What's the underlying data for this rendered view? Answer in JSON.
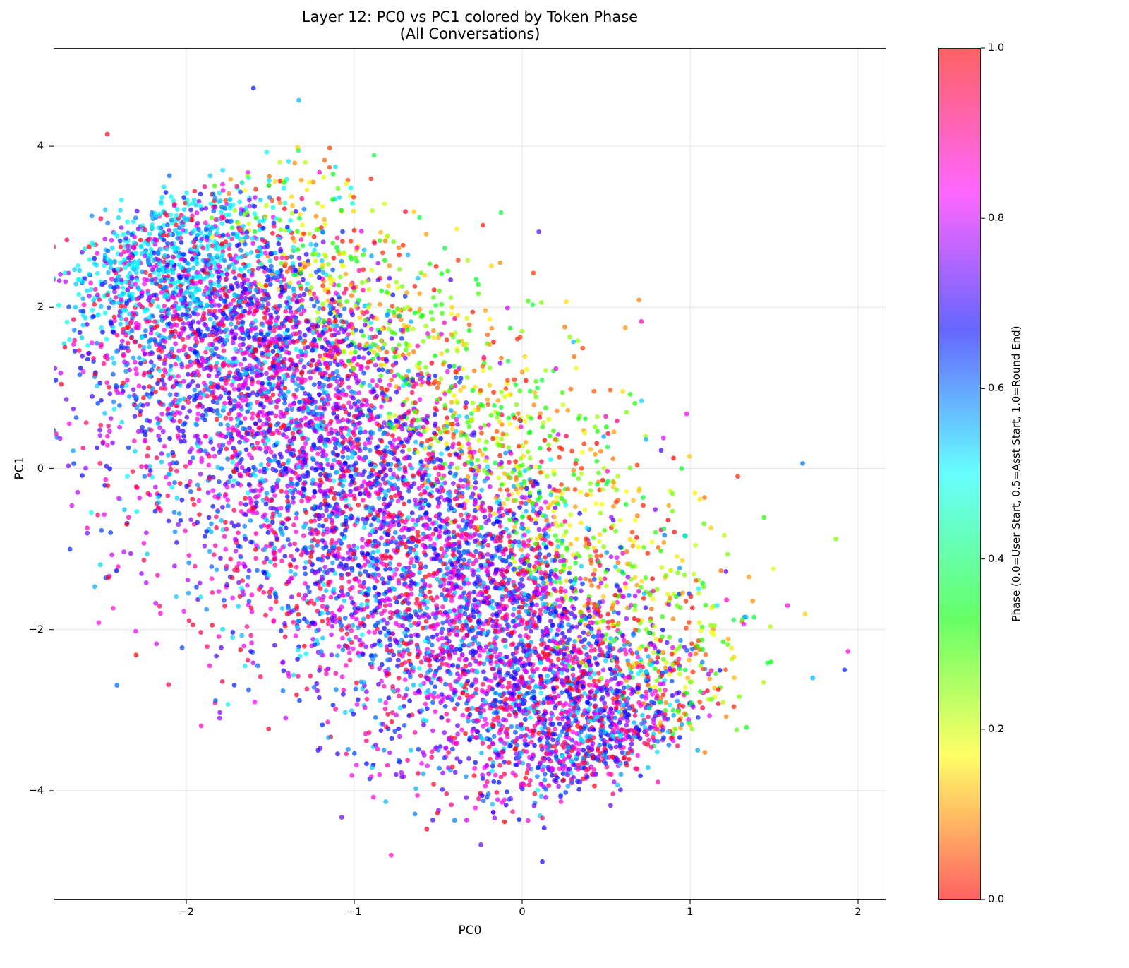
{
  "chart_data": {
    "type": "scatter",
    "title": "Layer 12: PC0 vs PC1 colored by Token Phase",
    "subtitle": "(All Conversations)",
    "xlabel": "PC0",
    "ylabel": "PC1",
    "xlim": [
      -2.1,
      2.15
    ],
    "ylim": [
      -5.3,
      5.25
    ],
    "xticks": [
      "−2",
      "−1",
      "0",
      "1",
      "2"
    ],
    "xtick_values": [
      -2,
      -1,
      0,
      1,
      2
    ],
    "yticks": [
      "4",
      "2",
      "0",
      "−2",
      "−4"
    ],
    "ytick_values": [
      4,
      2,
      0,
      -2,
      -4
    ],
    "grid": true,
    "point_count_estimate": 60000,
    "cloud_description": "Dense elongated point cloud running from upper-left (PC0≈-2.3, PC1≈3) to lower-right (PC0≈0.6, PC1≈-3.5); low-phase points (yellow/orange/green, phase 0.0–0.35) concentrated along the right/lower-right edge (PC0 0.3–1.4); cyan cluster (phase≈0.5) near PC0≈-2.1, PC1≈2.8; bulk of cloud is blue/purple/magenta/red (phase 0.6–1.0).",
    "cloud_extent": {
      "pc0_range": [
        -2.55,
        1.95
      ],
      "pc1_range": [
        -4.9,
        4.75
      ]
    },
    "notable_outliers": [
      {
        "pc0": -1.6,
        "pc1": 4.72,
        "phase": 0.65
      },
      {
        "pc0": -1.33,
        "pc1": 4.57,
        "phase": 0.55
      },
      {
        "pc0": 1.94,
        "pc1": -2.27,
        "phase": 0.85
      },
      {
        "pc0": 1.92,
        "pc1": -2.5,
        "phase": 0.65
      },
      {
        "pc0": 1.73,
        "pc1": -2.6,
        "phase": 0.55
      },
      {
        "pc0": 1.58,
        "pc1": -1.7,
        "phase": 0.85
      },
      {
        "pc0": -2.47,
        "pc1": 4.15,
        "phase": 0.98
      },
      {
        "pc0": -0.78,
        "pc1": -4.8,
        "phase": 0.88
      },
      {
        "pc0": 0.12,
        "pc1": -4.88,
        "phase": 0.68
      }
    ],
    "colorbar": {
      "label": "Phase (0.0=User Start, 0.5=Asst Start, 1.0=Round End)",
      "range": [
        0.0,
        1.0
      ],
      "ticks": [
        "0.0",
        "0.2",
        "0.4",
        "0.6",
        "0.8",
        "1.0"
      ],
      "stops": [
        {
          "v": 0.0,
          "color": "#ff6262"
        },
        {
          "v": 0.17,
          "color": "#ffff66"
        },
        {
          "v": 0.33,
          "color": "#66ff66"
        },
        {
          "v": 0.5,
          "color": "#66ffff"
        },
        {
          "v": 0.67,
          "color": "#6666ff"
        },
        {
          "v": 0.83,
          "color": "#ff66ff"
        },
        {
          "v": 1.0,
          "color": "#ff6262"
        }
      ]
    },
    "legend": null
  }
}
